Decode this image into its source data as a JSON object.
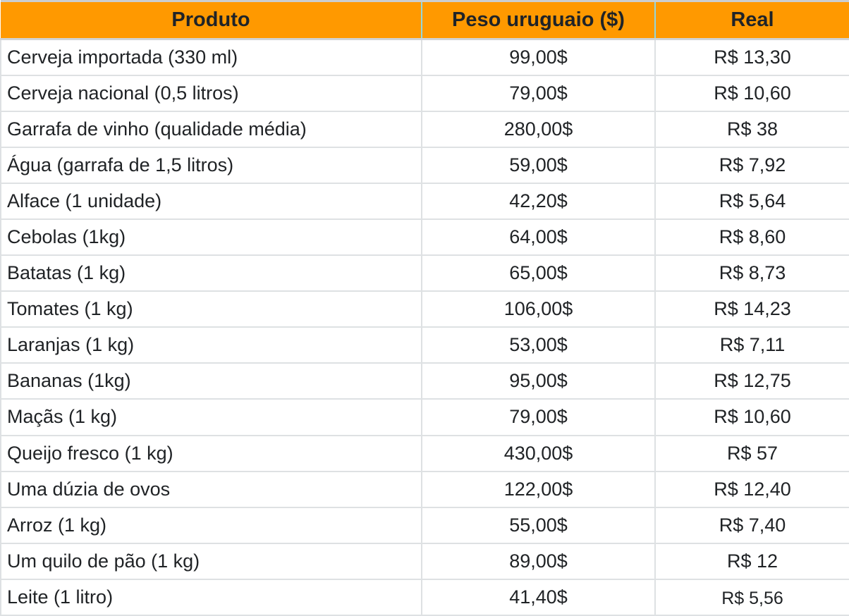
{
  "table": {
    "columns": [
      {
        "key": "produto",
        "label": "Produto"
      },
      {
        "key": "peso",
        "label": "Peso uruguaio ($)"
      },
      {
        "key": "real",
        "label": "Real"
      }
    ],
    "rows": [
      {
        "produto": "Cerveja importada (330 ml)",
        "peso": "99,00$",
        "real": "R$ 13,30"
      },
      {
        "produto": "Cerveja nacional (0,5 litros)",
        "peso": "79,00$",
        "real": "R$ 10,60"
      },
      {
        "produto": "Garrafa de vinho (qualidade média)",
        "peso": "280,00$",
        "real": "R$ 38"
      },
      {
        "produto": "Água (garrafa de 1,5 litros)",
        "peso": "59,00$",
        "real": "R$ 7,92"
      },
      {
        "produto": "Alface (1 unidade)",
        "peso": "42,20$",
        "real": "R$ 5,64"
      },
      {
        "produto": "Cebolas (1kg)",
        "peso": "64,00$",
        "real": "R$ 8,60"
      },
      {
        "produto": "Batatas (1 kg)",
        "peso": "65,00$",
        "real": "R$ 8,73"
      },
      {
        "produto": "Tomates (1 kg)",
        "peso": "106,00$",
        "real": "R$ 14,23"
      },
      {
        "produto": "Laranjas (1 kg)",
        "peso": "53,00$",
        "real": "R$ 7,11"
      },
      {
        "produto": "Bananas (1kg)",
        "peso": "95,00$",
        "real": "R$ 12,75"
      },
      {
        "produto": "Maçãs (1 kg)",
        "peso": "79,00$",
        "real": "R$ 10,60"
      },
      {
        "produto": "Queijo fresco (1 kg)",
        "peso": "430,00$",
        "real": "R$ 57"
      },
      {
        "produto": "Uma dúzia de ovos",
        "peso": "122,00$",
        "real": "R$ 12,40"
      },
      {
        "produto": "Arroz (1 kg)",
        "peso": "55,00$",
        "real": "R$ 7,40"
      },
      {
        "produto": "Um quilo de pão (1 kg)",
        "peso": "89,00$",
        "real": "R$ 12"
      },
      {
        "produto": "Leite (1 litro)",
        "peso": "41,40$",
        "real": "R$ 5,56"
      }
    ]
  },
  "colors": {
    "accent": "#FF9900",
    "header-text": "#1f2328",
    "body-text": "#202326",
    "grid": "#dee1e3",
    "grid-top": "#cbced0",
    "header-bottom": "#d0d3d5",
    "cyan": "#93d7de",
    "bg": "#ffffff"
  },
  "chart_data": {
    "type": "table",
    "title": "",
    "columns": [
      "Produto",
      "Peso uruguaio ($)",
      "Real"
    ],
    "rows": [
      [
        "Cerveja importada (330 ml)",
        "99,00$",
        "R$ 13,30"
      ],
      [
        "Cerveja nacional (0,5 litros)",
        "79,00$",
        "R$ 10,60"
      ],
      [
        "Garrafa de vinho (qualidade média)",
        "280,00$",
        "R$ 38"
      ],
      [
        "Água (garrafa de 1,5 litros)",
        "59,00$",
        "R$ 7,92"
      ],
      [
        "Alface (1 unidade)",
        "42,20$",
        "R$ 5,64"
      ],
      [
        "Cebolas (1kg)",
        "64,00$",
        "R$ 8,60"
      ],
      [
        "Batatas (1 kg)",
        "65,00$",
        "R$ 8,73"
      ],
      [
        "Tomates (1 kg)",
        "106,00$",
        "R$ 14,23"
      ],
      [
        "Laranjas (1 kg)",
        "53,00$",
        "R$ 7,11"
      ],
      [
        "Bananas (1kg)",
        "95,00$",
        "R$ 12,75"
      ],
      [
        "Maçãs (1 kg)",
        "79,00$",
        "R$ 10,60"
      ],
      [
        "Queijo fresco (1 kg)",
        "430,00$",
        "R$ 57"
      ],
      [
        "Uma dúzia de ovos",
        "122,00$",
        "R$ 12,40"
      ],
      [
        "Arroz (1 kg)",
        "55,00$",
        "R$ 7,40"
      ],
      [
        "Um quilo de pão (1 kg)",
        "89,00$",
        "R$ 12"
      ],
      [
        "Leite (1 litro)",
        "41,40$",
        "R$ 5,56"
      ]
    ],
    "values_peso_uyu": [
      99.0,
      79.0,
      280.0,
      59.0,
      42.2,
      64.0,
      65.0,
      106.0,
      53.0,
      95.0,
      79.0,
      430.0,
      122.0,
      55.0,
      89.0,
      41.4
    ],
    "values_real_brl": [
      13.3,
      10.6,
      38,
      7.92,
      5.64,
      8.6,
      8.73,
      14.23,
      7.11,
      12.75,
      10.6,
      57,
      12.4,
      7.4,
      12,
      5.56
    ],
    "layout": "3-column price comparison table, orange header row, light gray gridlines"
  }
}
